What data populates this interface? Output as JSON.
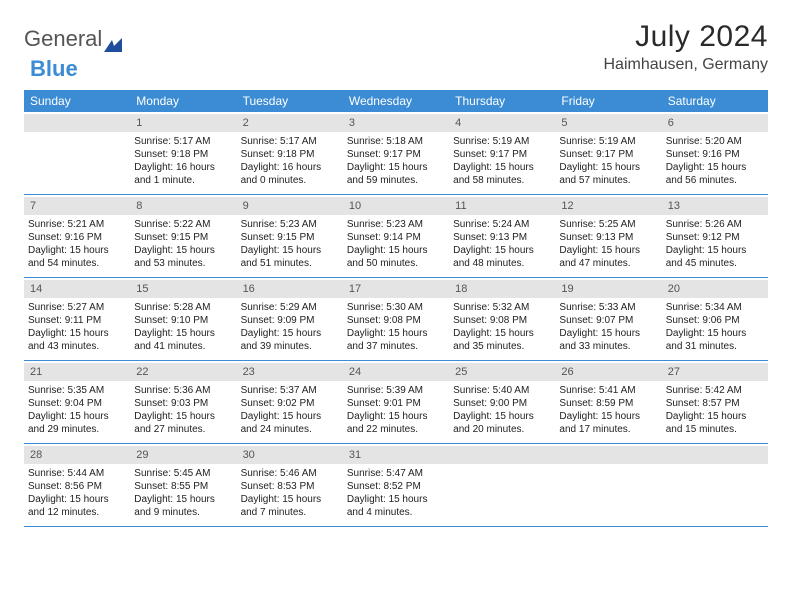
{
  "logo": {
    "part1": "General",
    "part2": "Blue"
  },
  "title": "July 2024",
  "location": "Haimhausen, Germany",
  "colors": {
    "header_bg": "#3b8cd4",
    "header_text": "#ffffff",
    "daynum_bg": "#e4e4e4",
    "border": "#3b8cd4",
    "body_text": "#222222"
  },
  "typography": {
    "title_fontsize": 30,
    "location_fontsize": 16,
    "header_fontsize": 12,
    "cell_fontsize": 10
  },
  "dayNames": [
    "Sunday",
    "Monday",
    "Tuesday",
    "Wednesday",
    "Thursday",
    "Friday",
    "Saturday"
  ],
  "weeks": [
    [
      null,
      {
        "n": "1",
        "sr": "Sunrise: 5:17 AM",
        "ss": "Sunset: 9:18 PM",
        "dl": "Daylight: 16 hours and 1 minute."
      },
      {
        "n": "2",
        "sr": "Sunrise: 5:17 AM",
        "ss": "Sunset: 9:18 PM",
        "dl": "Daylight: 16 hours and 0 minutes."
      },
      {
        "n": "3",
        "sr": "Sunrise: 5:18 AM",
        "ss": "Sunset: 9:17 PM",
        "dl": "Daylight: 15 hours and 59 minutes."
      },
      {
        "n": "4",
        "sr": "Sunrise: 5:19 AM",
        "ss": "Sunset: 9:17 PM",
        "dl": "Daylight: 15 hours and 58 minutes."
      },
      {
        "n": "5",
        "sr": "Sunrise: 5:19 AM",
        "ss": "Sunset: 9:17 PM",
        "dl": "Daylight: 15 hours and 57 minutes."
      },
      {
        "n": "6",
        "sr": "Sunrise: 5:20 AM",
        "ss": "Sunset: 9:16 PM",
        "dl": "Daylight: 15 hours and 56 minutes."
      }
    ],
    [
      {
        "n": "7",
        "sr": "Sunrise: 5:21 AM",
        "ss": "Sunset: 9:16 PM",
        "dl": "Daylight: 15 hours and 54 minutes."
      },
      {
        "n": "8",
        "sr": "Sunrise: 5:22 AM",
        "ss": "Sunset: 9:15 PM",
        "dl": "Daylight: 15 hours and 53 minutes."
      },
      {
        "n": "9",
        "sr": "Sunrise: 5:23 AM",
        "ss": "Sunset: 9:15 PM",
        "dl": "Daylight: 15 hours and 51 minutes."
      },
      {
        "n": "10",
        "sr": "Sunrise: 5:23 AM",
        "ss": "Sunset: 9:14 PM",
        "dl": "Daylight: 15 hours and 50 minutes."
      },
      {
        "n": "11",
        "sr": "Sunrise: 5:24 AM",
        "ss": "Sunset: 9:13 PM",
        "dl": "Daylight: 15 hours and 48 minutes."
      },
      {
        "n": "12",
        "sr": "Sunrise: 5:25 AM",
        "ss": "Sunset: 9:13 PM",
        "dl": "Daylight: 15 hours and 47 minutes."
      },
      {
        "n": "13",
        "sr": "Sunrise: 5:26 AM",
        "ss": "Sunset: 9:12 PM",
        "dl": "Daylight: 15 hours and 45 minutes."
      }
    ],
    [
      {
        "n": "14",
        "sr": "Sunrise: 5:27 AM",
        "ss": "Sunset: 9:11 PM",
        "dl": "Daylight: 15 hours and 43 minutes."
      },
      {
        "n": "15",
        "sr": "Sunrise: 5:28 AM",
        "ss": "Sunset: 9:10 PM",
        "dl": "Daylight: 15 hours and 41 minutes."
      },
      {
        "n": "16",
        "sr": "Sunrise: 5:29 AM",
        "ss": "Sunset: 9:09 PM",
        "dl": "Daylight: 15 hours and 39 minutes."
      },
      {
        "n": "17",
        "sr": "Sunrise: 5:30 AM",
        "ss": "Sunset: 9:08 PM",
        "dl": "Daylight: 15 hours and 37 minutes."
      },
      {
        "n": "18",
        "sr": "Sunrise: 5:32 AM",
        "ss": "Sunset: 9:08 PM",
        "dl": "Daylight: 15 hours and 35 minutes."
      },
      {
        "n": "19",
        "sr": "Sunrise: 5:33 AM",
        "ss": "Sunset: 9:07 PM",
        "dl": "Daylight: 15 hours and 33 minutes."
      },
      {
        "n": "20",
        "sr": "Sunrise: 5:34 AM",
        "ss": "Sunset: 9:06 PM",
        "dl": "Daylight: 15 hours and 31 minutes."
      }
    ],
    [
      {
        "n": "21",
        "sr": "Sunrise: 5:35 AM",
        "ss": "Sunset: 9:04 PM",
        "dl": "Daylight: 15 hours and 29 minutes."
      },
      {
        "n": "22",
        "sr": "Sunrise: 5:36 AM",
        "ss": "Sunset: 9:03 PM",
        "dl": "Daylight: 15 hours and 27 minutes."
      },
      {
        "n": "23",
        "sr": "Sunrise: 5:37 AM",
        "ss": "Sunset: 9:02 PM",
        "dl": "Daylight: 15 hours and 24 minutes."
      },
      {
        "n": "24",
        "sr": "Sunrise: 5:39 AM",
        "ss": "Sunset: 9:01 PM",
        "dl": "Daylight: 15 hours and 22 minutes."
      },
      {
        "n": "25",
        "sr": "Sunrise: 5:40 AM",
        "ss": "Sunset: 9:00 PM",
        "dl": "Daylight: 15 hours and 20 minutes."
      },
      {
        "n": "26",
        "sr": "Sunrise: 5:41 AM",
        "ss": "Sunset: 8:59 PM",
        "dl": "Daylight: 15 hours and 17 minutes."
      },
      {
        "n": "27",
        "sr": "Sunrise: 5:42 AM",
        "ss": "Sunset: 8:57 PM",
        "dl": "Daylight: 15 hours and 15 minutes."
      }
    ],
    [
      {
        "n": "28",
        "sr": "Sunrise: 5:44 AM",
        "ss": "Sunset: 8:56 PM",
        "dl": "Daylight: 15 hours and 12 minutes."
      },
      {
        "n": "29",
        "sr": "Sunrise: 5:45 AM",
        "ss": "Sunset: 8:55 PM",
        "dl": "Daylight: 15 hours and 9 minutes."
      },
      {
        "n": "30",
        "sr": "Sunrise: 5:46 AM",
        "ss": "Sunset: 8:53 PM",
        "dl": "Daylight: 15 hours and 7 minutes."
      },
      {
        "n": "31",
        "sr": "Sunrise: 5:47 AM",
        "ss": "Sunset: 8:52 PM",
        "dl": "Daylight: 15 hours and 4 minutes."
      },
      null,
      null,
      null
    ]
  ]
}
